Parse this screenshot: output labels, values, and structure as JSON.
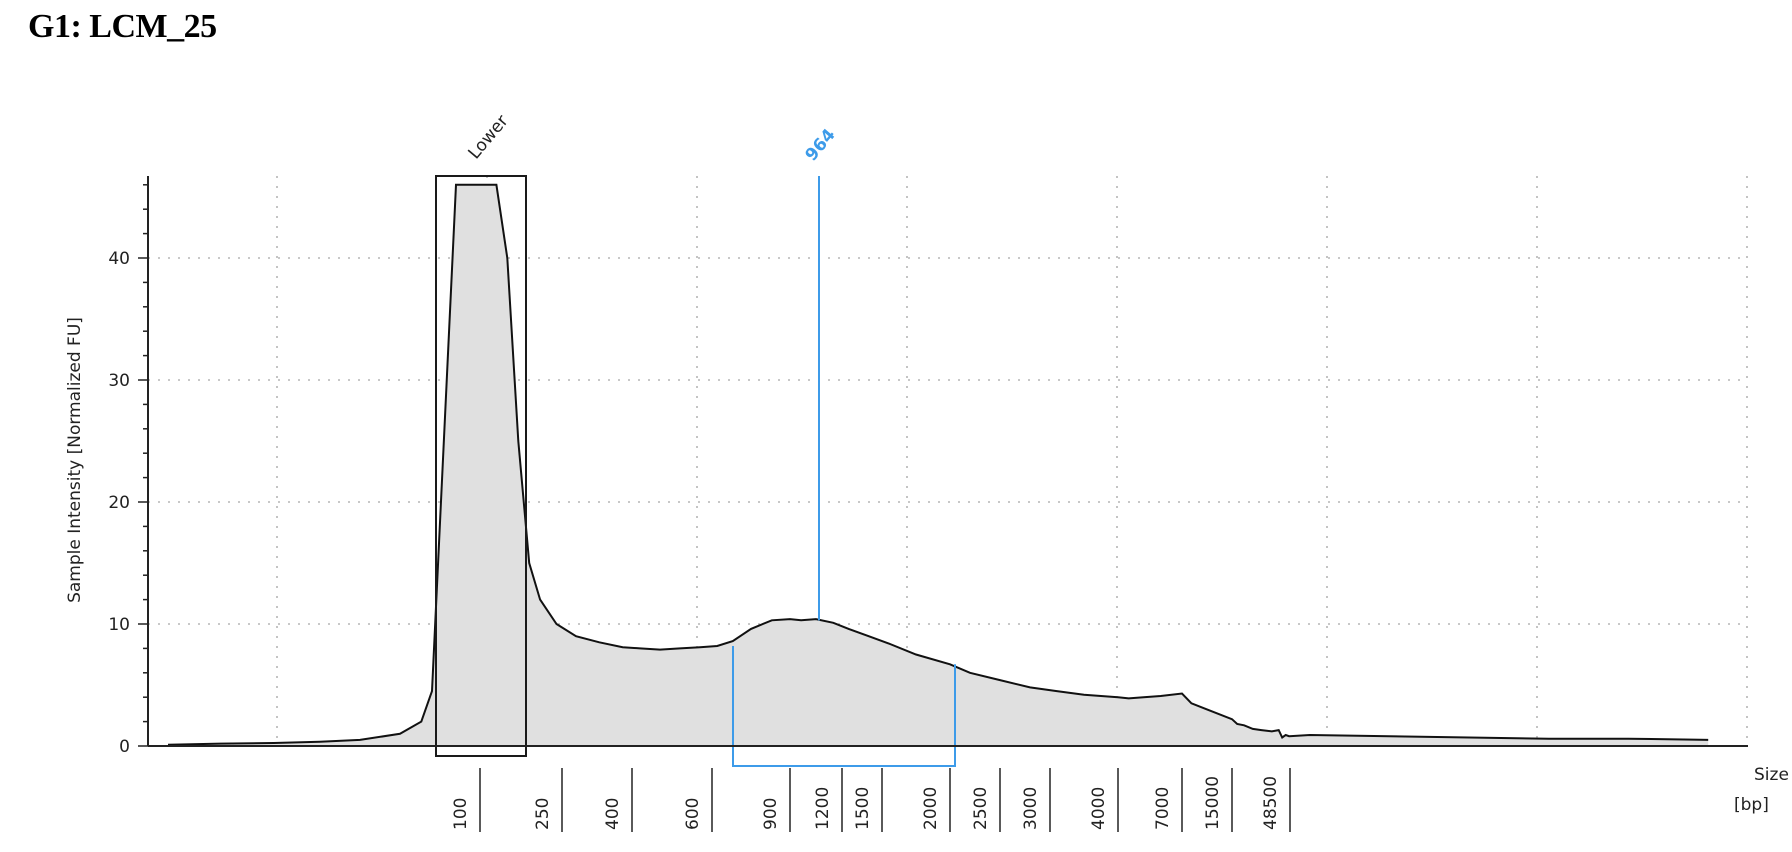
{
  "title": "G1: LCM_25",
  "chart_data": {
    "type": "area",
    "title": "G1: LCM_25",
    "ylabel": "Sample Intensity [Normalized FU]",
    "xlabel_line1": "Size",
    "xlabel_line2": "[bp]",
    "ylim": [
      0,
      46
    ],
    "y_ticks": [
      0,
      10,
      20,
      30,
      40
    ],
    "ladder_sizes": [
      100,
      250,
      400,
      600,
      900,
      1200,
      1500,
      2000,
      2500,
      3000,
      4000,
      7000,
      15000,
      48500
    ],
    "ladder_labels": [
      "100",
      "250",
      "400",
      "600",
      "900",
      "1200",
      "1500",
      "2000",
      "2500",
      "3000",
      "4000",
      "7000",
      "15000",
      "48500"
    ],
    "x_scale": "ladder (non-linear, electrophoretic mobility)",
    "grid": true,
    "marker_label": "Lower",
    "peak_label": "964",
    "peak_size": 964,
    "region": {
      "from": 640,
      "to": 2100
    },
    "series": [
      {
        "points": [
          [
            25,
            0.1
          ],
          [
            35,
            0.2
          ],
          [
            45,
            0.25
          ],
          [
            55,
            0.35
          ],
          [
            65,
            0.5
          ],
          [
            75,
            1.0
          ],
          [
            85,
            2.0
          ],
          [
            90,
            4.5
          ],
          [
            95,
            46
          ],
          [
            100,
            46
          ],
          [
            130,
            46
          ],
          [
            150,
            40
          ],
          [
            170,
            25
          ],
          [
            190,
            15
          ],
          [
            210,
            12
          ],
          [
            240,
            10
          ],
          [
            280,
            9
          ],
          [
            330,
            8.5
          ],
          [
            380,
            8.1
          ],
          [
            420,
            8.0
          ],
          [
            470,
            7.9
          ],
          [
            520,
            8.0
          ],
          [
            570,
            8.1
          ],
          [
            620,
            8.2
          ],
          [
            680,
            8.6
          ],
          [
            750,
            9.6
          ],
          [
            830,
            10.3
          ],
          [
            900,
            10.4
          ],
          [
            964,
            10.3
          ],
          [
            1050,
            10.4
          ],
          [
            1150,
            10.1
          ],
          [
            1250,
            9.6
          ],
          [
            1400,
            9.0
          ],
          [
            1550,
            8.4
          ],
          [
            1750,
            7.5
          ],
          [
            2000,
            6.7
          ],
          [
            2200,
            6.0
          ],
          [
            2500,
            5.4
          ],
          [
            2800,
            4.8
          ],
          [
            3100,
            4.5
          ],
          [
            3500,
            4.2
          ],
          [
            4000,
            4.0
          ],
          [
            4500,
            3.9
          ],
          [
            5200,
            4.0
          ],
          [
            6000,
            4.1
          ],
          [
            7000,
            4.3
          ],
          [
            8500,
            3.5
          ],
          [
            11000,
            3.0
          ],
          [
            15000,
            2.2
          ],
          [
            18000,
            1.8
          ],
          [
            22000,
            1.7
          ],
          [
            27000,
            1.4
          ],
          [
            32000,
            1.3
          ],
          [
            38000,
            1.2
          ],
          [
            42000,
            1.3
          ],
          [
            44000,
            0.7
          ],
          [
            46000,
            0.9
          ],
          [
            48000,
            0.8
          ],
          [
            49000,
            0.9
          ],
          [
            51000,
            0.8
          ],
          [
            53000,
            0.7
          ],
          [
            55000,
            0.6
          ],
          [
            57000,
            0.6
          ],
          [
            59000,
            0.5
          ]
        ]
      }
    ]
  },
  "colors": {
    "trace_fill": "#e0e0e0",
    "trace_line": "#111111",
    "axis": "#222222",
    "grid": "#b5b5b5",
    "peak": "#3d9be9",
    "marker_box": "#1a1a1a"
  }
}
